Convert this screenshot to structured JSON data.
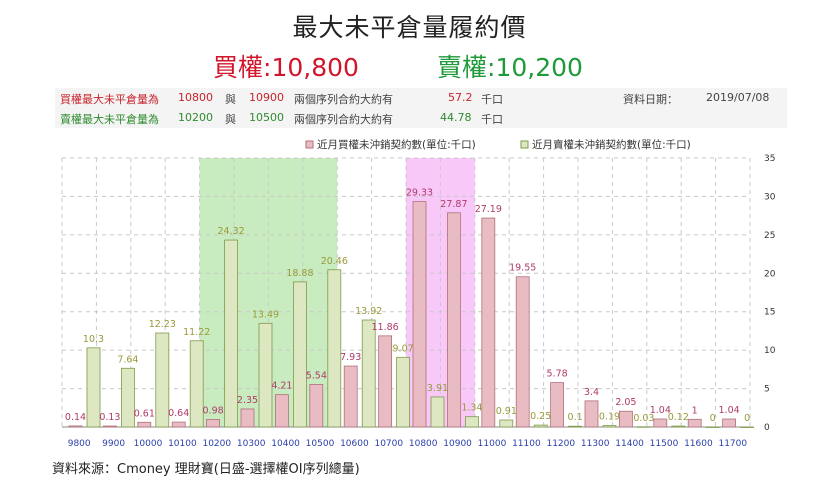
{
  "header": {
    "title": "最大未平倉量履約價",
    "call_label": "買權",
    "call_strike": "10,800",
    "put_label": "賣權",
    "put_strike": "10,200"
  },
  "info": {
    "row1": {
      "prefix": "買權最大未平倉量為",
      "strike_a": "10800",
      "conj": "與",
      "strike_b": "10900",
      "desc": "兩個序列合約大約有",
      "amount": "57.2",
      "unit": "千口"
    },
    "row2": {
      "prefix": "賣權最大未平倉量為",
      "strike_a": "10200",
      "conj": "與",
      "strike_b": "10500",
      "desc": "兩個序列合約大約有",
      "amount": "44.78",
      "unit": "千口"
    },
    "date_label": "資料日期：",
    "date": "2019/07/08"
  },
  "source": "資料來源：Cmoney 理財寶(日盛-選擇權OI序列總量)",
  "colors": {
    "call_fill": "#e8bcc2",
    "call_stroke": "#b0707a",
    "put_fill": "#dde8c2",
    "put_stroke": "#7f9a4a",
    "call_label": "#b03a6a",
    "put_label": "#9a9a3a",
    "put_zone": "#c8ecc0",
    "call_zone": "#f8c8f8",
    "xtick": "#2a3fa8"
  },
  "chart_data": {
    "type": "bar",
    "categories": [
      "9800",
      "9900",
      "10000",
      "10100",
      "10200",
      "10300",
      "10400",
      "10500",
      "10600",
      "10700",
      "10800",
      "10900",
      "11000",
      "11100",
      "11200",
      "11300",
      "11400",
      "11500",
      "11600",
      "11700"
    ],
    "series": [
      {
        "name": "近月買權未沖銷契約數(單位:千口)",
        "values": [
          0.14,
          0.13,
          0.61,
          0.64,
          0.98,
          2.35,
          4.21,
          5.54,
          7.93,
          11.86,
          29.33,
          27.87,
          27.19,
          19.55,
          5.78,
          3.4,
          2.05,
          1.04,
          1,
          1.04
        ]
      },
      {
        "name": "近月賣權未沖銷契約數(單位:千口)",
        "values": [
          10.3,
          7.64,
          12.23,
          11.22,
          24.32,
          13.49,
          18.88,
          20.46,
          13.92,
          9.07,
          3.91,
          1.34,
          0.91,
          0.25,
          0.1,
          0.19,
          0.03,
          0.12,
          0,
          0
        ]
      }
    ],
    "ylim": [
      0,
      35
    ],
    "yticks": [
      0,
      5,
      10,
      15,
      20,
      25,
      30,
      35
    ],
    "highlight_put_range": [
      "10200",
      "10500"
    ],
    "highlight_call_range": [
      "10800",
      "10900"
    ],
    "legend_position": "top-right",
    "grid": true
  }
}
